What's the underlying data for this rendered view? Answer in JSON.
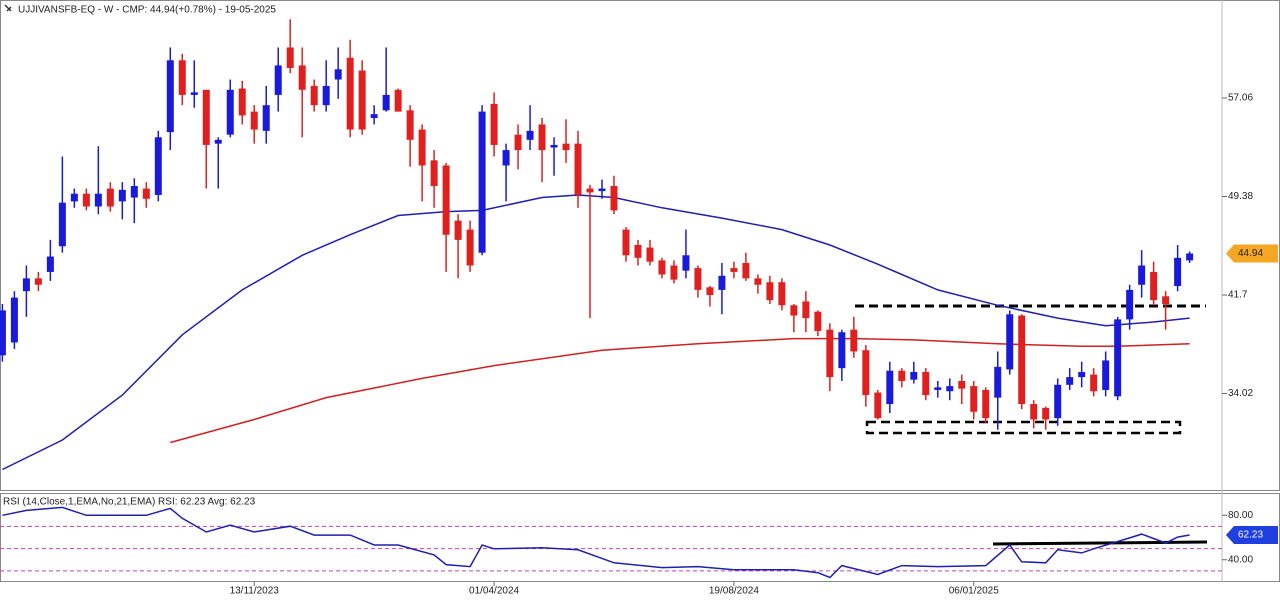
{
  "chart_data": [
    {
      "type": "candlestick",
      "title": "UJJIVANSFB-EQ - W - CMP: 44.94(+0.78%) - 19-05-2025",
      "up_color": "#1a1adb",
      "down_color": "#e0201f",
      "xlim": [
        -0.2,
        101.7
      ],
      "ylim": [
        26.5,
        64.7
      ],
      "yticks": [
        57.06,
        49.38,
        41.7,
        34.02
      ],
      "xticks": [
        {
          "value": 21,
          "label": "13/11/2023"
        },
        {
          "value": 41,
          "label": "01/04/2024"
        },
        {
          "value": 61,
          "label": "19/08/2024"
        },
        {
          "value": 81,
          "label": "06/01/2025"
        }
      ],
      "open": [
        37,
        38,
        42,
        43,
        43.5,
        45.5,
        49,
        49.6,
        48.6,
        50,
        49,
        49.3,
        50,
        49.5,
        54.4,
        60,
        57.3,
        57.7,
        53.5,
        54.2,
        57.8,
        56,
        54.5,
        57.3,
        61,
        59.6,
        58,
        56.5,
        58.5,
        60.2,
        59.2,
        55.5,
        56.1,
        57.7,
        56.1,
        54.6,
        52.2,
        51.8,
        47.5,
        46.8,
        45,
        56.6,
        51.8,
        54.2,
        53.8,
        55,
        53.2,
        53.5,
        53.5,
        50,
        49.8,
        50.2,
        46.8,
        45.6,
        45.4,
        44.4,
        44,
        43.6,
        43.8,
        42.3,
        42.1,
        43.8,
        44.2,
        43,
        42.7,
        42.7,
        40.9,
        41.2,
        40.4,
        39,
        36,
        39,
        37.4,
        34.1,
        33.2,
        35.8,
        35.1,
        35.7,
        34.3,
        34.2,
        35,
        34.6,
        34.3,
        33.7,
        35.9,
        40.1,
        33.2,
        32.9,
        32.1,
        34.7,
        35.3,
        35.5,
        34.3,
        33.8,
        39.8,
        42.5,
        43.5,
        41.6,
        42.4,
        44.4
      ],
      "high": [
        41,
        42,
        44,
        43.5,
        46,
        52.5,
        50,
        50,
        53.3,
        50.5,
        50.5,
        50.8,
        50.5,
        54.5,
        61,
        60.5,
        60,
        57.7,
        54,
        58.5,
        58.4,
        56.5,
        58,
        61,
        63.2,
        61,
        58.5,
        60,
        61,
        61.6,
        60,
        56.5,
        61,
        57.8,
        56.5,
        55,
        53,
        52,
        48,
        47.5,
        56.5,
        57.5,
        53.5,
        55,
        56.5,
        55.5,
        54,
        55.4,
        54.5,
        50.3,
        50.7,
        51,
        47,
        46,
        46,
        44.6,
        44.4,
        46.8,
        44,
        42.4,
        44.2,
        44.3,
        45,
        43.3,
        43.2,
        43,
        41,
        42,
        40.5,
        39.5,
        39,
        40,
        37.8,
        34.3,
        36.5,
        36,
        36.5,
        36,
        35,
        35.2,
        35.5,
        35,
        34.5,
        37.3,
        40.5,
        40.2,
        33.5,
        33,
        35.2,
        36,
        36.5,
        36,
        37.3,
        40,
        42.5,
        45.2,
        44.3,
        42,
        45.6,
        45.1
      ],
      "low": [
        36.5,
        37.5,
        40,
        42,
        42.8,
        45,
        48.5,
        48.3,
        48,
        48.2,
        47.6,
        47.3,
        48.5,
        49,
        53,
        56.5,
        56.3,
        50,
        50,
        54,
        55,
        53.5,
        53.5,
        56,
        59,
        54,
        56,
        56,
        57,
        54,
        54.2,
        55,
        56,
        56,
        51.7,
        49,
        48.5,
        43.5,
        43,
        43.5,
        44.8,
        52.5,
        49,
        51.5,
        53,
        50.5,
        51,
        52,
        48.5,
        39.9,
        49.2,
        48,
        44.3,
        44,
        44,
        43,
        42.6,
        43,
        41.5,
        40.8,
        40.2,
        43,
        42.8,
        41.8,
        41,
        40.5,
        38.8,
        38.8,
        38.5,
        34.2,
        35,
        36.8,
        33,
        32,
        32.5,
        34.5,
        34.8,
        33.5,
        33.7,
        33.5,
        33.2,
        32,
        31.7,
        31.2,
        35.5,
        32.8,
        31.3,
        31.2,
        31.5,
        34.3,
        34.5,
        33.8,
        33.8,
        33.5,
        39,
        41.5,
        40.9,
        39,
        42,
        44.2
      ],
      "close": [
        40.5,
        41.5,
        43,
        42.5,
        44.7,
        48.9,
        49.6,
        48.6,
        49.6,
        48.6,
        49.9,
        50.2,
        49.2,
        54,
        60,
        57.3,
        57.5,
        53.4,
        53.8,
        57.7,
        55.7,
        54.6,
        56.5,
        59.6,
        59.4,
        57.7,
        56.5,
        58,
        59.3,
        54.6,
        54.6,
        55.8,
        57.3,
        56,
        53.8,
        51.8,
        50.2,
        46.4,
        46,
        44,
        56,
        53.4,
        53,
        53,
        54.5,
        53,
        53.4,
        53,
        49.5,
        49.7,
        50,
        48.3,
        44.8,
        44.6,
        44.3,
        43.3,
        42.9,
        44.8,
        42.1,
        41.7,
        43.2,
        43.5,
        43,
        42.5,
        41.3,
        40.9,
        40.1,
        39.9,
        38.9,
        35.3,
        38.8,
        37.3,
        33.9,
        32.1,
        35.8,
        35,
        35.7,
        33.9,
        34.5,
        34.6,
        34.4,
        32.6,
        32.1,
        36.1,
        40.2,
        33.2,
        32,
        32,
        34.7,
        35.3,
        35.7,
        34.2,
        36.6,
        39.8,
        42.1,
        44,
        41.3,
        41,
        44.6,
        44.94
      ],
      "last_price": 44.94,
      "series": [
        {
          "color": "#1f1fb0",
          "x": [
            0,
            5,
            10,
            15,
            20,
            25,
            29,
            33,
            37,
            40,
            45,
            48,
            51,
            55,
            60,
            65,
            69,
            73,
            78,
            83,
            88,
            92,
            96,
            99
          ],
          "values": [
            28.1,
            30.4,
            33.9,
            38.6,
            42.1,
            44.8,
            46.4,
            47.9,
            48.2,
            48.3,
            49.3,
            49.5,
            49.3,
            48.5,
            47.7,
            46.8,
            45.6,
            44.1,
            42.1,
            40.9,
            39.9,
            39.3,
            39.6,
            39.9
          ]
        },
        {
          "color": "#d02020",
          "x": [
            14,
            21,
            27,
            35,
            41,
            50,
            58,
            66,
            71,
            76,
            83,
            90,
            93,
            99
          ],
          "values": [
            30.2,
            32,
            33.7,
            35.2,
            36.2,
            37.4,
            37.9,
            38.3,
            38.3,
            38.2,
            37.9,
            37.7,
            37.7,
            37.9
          ]
        }
      ]
    },
    {
      "type": "line",
      "title": "RSI (14,Close,1,EMA,No,21,EMA) RSI: 62.23 Avg: 62.23",
      "color": "#1f1fb0",
      "xlim": [
        -0.2,
        101.7
      ],
      "ylim": [
        20,
        100
      ],
      "yticks": [
        {
          "value": 80,
          "label": "80.00"
        },
        {
          "value": 40,
          "label": "40.00"
        }
      ],
      "bands": [
        70,
        50,
        30
      ],
      "x": [
        0,
        2,
        5,
        7,
        10,
        12,
        14,
        15,
        17,
        19,
        21,
        24,
        26,
        29,
        31,
        33,
        36,
        37,
        39,
        40,
        41,
        45,
        48,
        51,
        55,
        58,
        61,
        66,
        68,
        69,
        70,
        73,
        75,
        78,
        82,
        84,
        85,
        87,
        88,
        90,
        91,
        94,
        95,
        97,
        98,
        99
      ],
      "values": [
        80,
        84.4,
        87.1,
        80,
        80,
        80,
        86.2,
        77.3,
        64.9,
        71.1,
        64.9,
        70.2,
        62.2,
        62.2,
        53.3,
        53.3,
        44.4,
        35.6,
        33.8,
        53.3,
        49.8,
        50.7,
        48.9,
        37.3,
        32.9,
        33.8,
        31.1,
        31.1,
        28.4,
        24,
        34.7,
        26.7,
        34.7,
        33.8,
        34.7,
        53.3,
        38.2,
        37.3,
        48.9,
        46.2,
        49.8,
        59.6,
        63.1,
        55.1,
        60.4,
        62.23
      ],
      "last_value": 62.23
    }
  ]
}
